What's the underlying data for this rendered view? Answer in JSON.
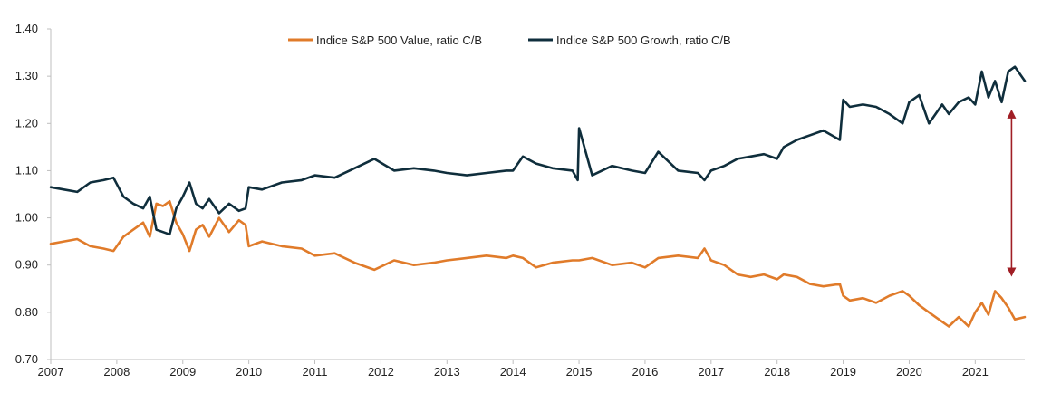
{
  "chart_data": {
    "type": "line",
    "title": "",
    "xlabel": "",
    "ylabel": "",
    "xlim": [
      2007,
      2021.75
    ],
    "ylim": [
      0.7,
      1.4
    ],
    "x_ticks": [
      2007,
      2008,
      2009,
      2010,
      2011,
      2012,
      2013,
      2014,
      2015,
      2016,
      2017,
      2018,
      2019,
      2020,
      2021
    ],
    "x_tick_labels": [
      "2007",
      "2008",
      "2009",
      "2010",
      "2011",
      "2012",
      "2013",
      "2014",
      "2015",
      "2016",
      "2017",
      "2018",
      "2019",
      "2020",
      "2021"
    ],
    "y_ticks": [
      0.7,
      0.8,
      0.9,
      1.0,
      1.1,
      1.2,
      1.3,
      1.4
    ],
    "y_tick_labels": [
      "0.70",
      "0.80",
      "0.90",
      "1.00",
      "1.10",
      "1.20",
      "1.30",
      "1.40"
    ],
    "grid": false,
    "legend_position": "top-center",
    "series": [
      {
        "name": "Indice S&P 500 Value, ratio C/B",
        "color": "#e07b2a",
        "x": [
          2007.0,
          2007.2,
          2007.4,
          2007.6,
          2007.8,
          2007.95,
          2008.1,
          2008.25,
          2008.4,
          2008.5,
          2008.6,
          2008.7,
          2008.8,
          2008.9,
          2009.0,
          2009.1,
          2009.2,
          2009.3,
          2009.4,
          2009.55,
          2009.7,
          2009.85,
          2009.95,
          2010.0,
          2010.2,
          2010.5,
          2010.8,
          2011.0,
          2011.3,
          2011.6,
          2011.9,
          2012.2,
          2012.5,
          2012.8,
          2013.0,
          2013.3,
          2013.6,
          2013.9,
          2014.0,
          2014.15,
          2014.35,
          2014.6,
          2014.9,
          2015.0,
          2015.2,
          2015.5,
          2015.8,
          2016.0,
          2016.2,
          2016.5,
          2016.8,
          2016.9,
          2017.0,
          2017.2,
          2017.4,
          2017.6,
          2017.8,
          2018.0,
          2018.1,
          2018.3,
          2018.5,
          2018.7,
          2018.95,
          2019.0,
          2019.1,
          2019.3,
          2019.5,
          2019.7,
          2019.9,
          2020.0,
          2020.15,
          2020.3,
          2020.5,
          2020.6,
          2020.75,
          2020.9,
          2021.0,
          2021.1,
          2021.2,
          2021.3,
          2021.4,
          2021.5,
          2021.6,
          2021.75
        ],
        "y": [
          0.945,
          0.95,
          0.955,
          0.94,
          0.935,
          0.93,
          0.96,
          0.975,
          0.99,
          0.96,
          1.03,
          1.025,
          1.035,
          0.99,
          0.965,
          0.93,
          0.975,
          0.985,
          0.96,
          1.0,
          0.97,
          0.995,
          0.985,
          0.94,
          0.95,
          0.94,
          0.935,
          0.92,
          0.925,
          0.905,
          0.89,
          0.91,
          0.9,
          0.905,
          0.91,
          0.915,
          0.92,
          0.915,
          0.92,
          0.915,
          0.895,
          0.905,
          0.91,
          0.91,
          0.915,
          0.9,
          0.905,
          0.895,
          0.915,
          0.92,
          0.915,
          0.935,
          0.91,
          0.9,
          0.88,
          0.875,
          0.88,
          0.87,
          0.88,
          0.875,
          0.86,
          0.855,
          0.86,
          0.835,
          0.825,
          0.83,
          0.82,
          0.835,
          0.845,
          0.835,
          0.815,
          0.8,
          0.78,
          0.77,
          0.79,
          0.77,
          0.8,
          0.82,
          0.795,
          0.845,
          0.83,
          0.81,
          0.785,
          0.79
        ]
      },
      {
        "name": "Indice S&P 500 Growth, ratio C/B",
        "color": "#0f2e3c",
        "x": [
          2007.0,
          2007.2,
          2007.4,
          2007.6,
          2007.8,
          2007.95,
          2008.1,
          2008.25,
          2008.4,
          2008.5,
          2008.6,
          2008.7,
          2008.8,
          2008.9,
          2009.0,
          2009.1,
          2009.2,
          2009.3,
          2009.4,
          2009.55,
          2009.7,
          2009.85,
          2009.95,
          2010.0,
          2010.2,
          2010.5,
          2010.8,
          2011.0,
          2011.3,
          2011.6,
          2011.9,
          2012.2,
          2012.5,
          2012.8,
          2013.0,
          2013.3,
          2013.6,
          2013.9,
          2014.0,
          2014.15,
          2014.35,
          2014.6,
          2014.9,
          2014.98,
          2015.0,
          2015.2,
          2015.5,
          2015.8,
          2016.0,
          2016.2,
          2016.5,
          2016.8,
          2016.9,
          2017.0,
          2017.2,
          2017.4,
          2017.6,
          2017.8,
          2018.0,
          2018.1,
          2018.3,
          2018.5,
          2018.7,
          2018.95,
          2019.0,
          2019.1,
          2019.3,
          2019.5,
          2019.7,
          2019.9,
          2020.0,
          2020.15,
          2020.3,
          2020.5,
          2020.6,
          2020.75,
          2020.9,
          2021.0,
          2021.1,
          2021.2,
          2021.3,
          2021.4,
          2021.5,
          2021.6,
          2021.75
        ],
        "y": [
          1.065,
          1.06,
          1.055,
          1.075,
          1.08,
          1.085,
          1.045,
          1.03,
          1.02,
          1.045,
          0.975,
          0.97,
          0.965,
          1.02,
          1.045,
          1.075,
          1.03,
          1.02,
          1.04,
          1.01,
          1.03,
          1.015,
          1.02,
          1.065,
          1.06,
          1.075,
          1.08,
          1.09,
          1.085,
          1.105,
          1.125,
          1.1,
          1.105,
          1.1,
          1.095,
          1.09,
          1.095,
          1.1,
          1.1,
          1.13,
          1.115,
          1.105,
          1.1,
          1.08,
          1.19,
          1.09,
          1.11,
          1.1,
          1.095,
          1.14,
          1.1,
          1.095,
          1.08,
          1.1,
          1.11,
          1.125,
          1.13,
          1.135,
          1.125,
          1.15,
          1.165,
          1.175,
          1.185,
          1.165,
          1.25,
          1.235,
          1.24,
          1.235,
          1.22,
          1.2,
          1.245,
          1.26,
          1.2,
          1.24,
          1.22,
          1.245,
          1.255,
          1.24,
          1.31,
          1.255,
          1.29,
          1.245,
          1.31,
          1.32,
          1.29
        ]
      }
    ],
    "annotations": [
      {
        "type": "double-arrow",
        "x": 2021.55,
        "y_from": 0.885,
        "y_to": 1.22,
        "color": "#a01e25"
      }
    ]
  }
}
